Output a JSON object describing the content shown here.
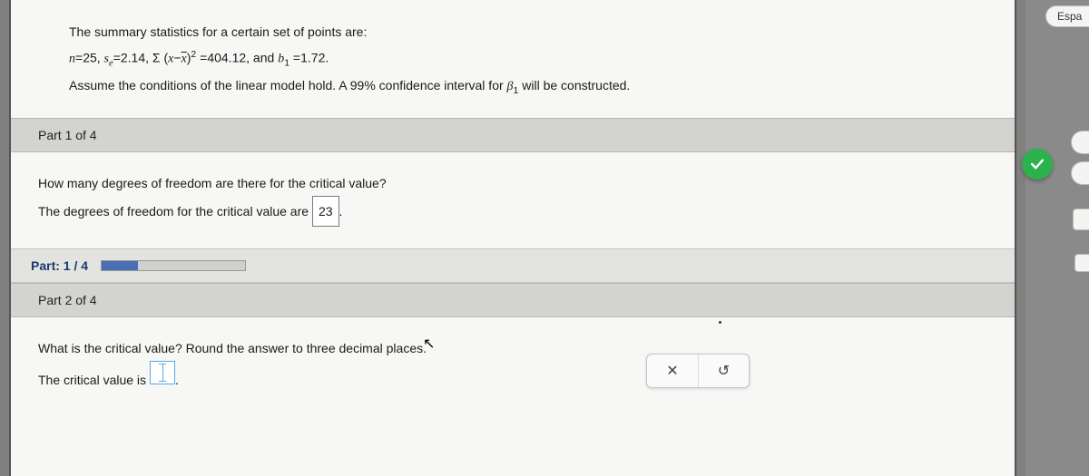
{
  "colors": {
    "page_bg": "#f7f7f5",
    "outer_bg": "#808080",
    "header_bg": "#d3d3cf",
    "progress_bg": "#e3e3df",
    "progress_fill": "#4a6fb5",
    "check_green": "#2bb24c",
    "input_border": "#5aa9e6"
  },
  "intro": {
    "line1": "The summary statistics for a certain set of points are:",
    "n_label": "n",
    "n_value": "25",
    "se_label": "s",
    "se_sub": "e",
    "se_value": "2.14",
    "sigma": "Σ",
    "sumsq_lhs_open": "(",
    "sumsq_var": "x",
    "sumsq_minus": "−",
    "sumsq_xbar": "x",
    "sumsq_close": ")",
    "sumsq_exp": "2",
    "sumsq_value": "404.12",
    "and_word": ", and ",
    "b1_label": "b",
    "b1_sub": "1",
    "b1_value": "1.72",
    "line3_a": "Assume the conditions of the linear model hold. A ",
    "conf_pct": "99%",
    "line3_b": " confidence interval for ",
    "beta": "β",
    "beta_sub": "1",
    "line3_c": " will be constructed."
  },
  "part1": {
    "header": "Part 1 of 4",
    "question": "How many degrees of freedom are there for the critical value?",
    "answer_lead": "The degrees of freedom for the critical value are ",
    "answer_value": "23",
    "answer_trail": "."
  },
  "progress": {
    "label": "Part: 1 / 4",
    "fill_pct": 25
  },
  "part2": {
    "header": "Part 2 of 4",
    "question": "What is the critical value? Round the answer to three decimal places.",
    "answer_lead": "The critical value is ",
    "answer_trail": "."
  },
  "toolbar": {
    "clear_icon": "✕",
    "reset_icon": "↺"
  },
  "rail": {
    "espa": "Espa"
  }
}
